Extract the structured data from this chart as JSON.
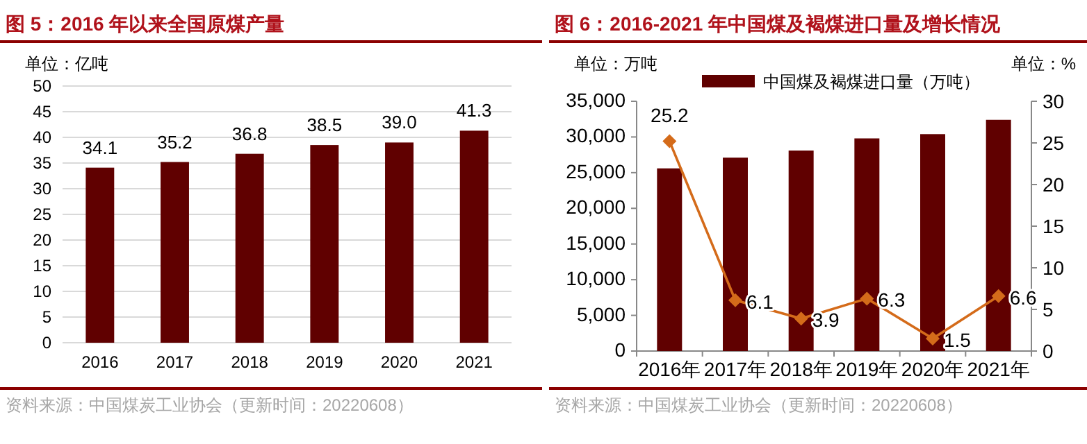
{
  "chart_data": [
    {
      "type": "bar",
      "title": "图 5：2016 年以来全国原煤产量",
      "ylabel": "单位：亿吨",
      "categories": [
        "2016",
        "2017",
        "2018",
        "2019",
        "2020",
        "2021"
      ],
      "series": [
        {
          "color": "#600000",
          "values": [
            34.1,
            35.2,
            36.8,
            38.5,
            39.0,
            41.3
          ],
          "value_labels": [
            "34.1",
            "35.2",
            "36.8",
            "38.5",
            "39.0",
            "41.3"
          ]
        }
      ],
      "ylim": [
        0,
        50
      ],
      "yticks": [
        0,
        5,
        10,
        15,
        20,
        25,
        30,
        35,
        40,
        45,
        50
      ],
      "grid": "y",
      "legend": false,
      "annotations": [
        "资料来源：中国煤炭工业协会（更新时间：20220608）"
      ]
    },
    {
      "type": "bar",
      "title": "图 6：2016-2021 年中国煤及褐煤进口量及增长情况",
      "ylabel": "单位：万吨",
      "y2label": "单位：%",
      "categories": [
        "2016年",
        "2017年",
        "2018年",
        "2019年",
        "2020年",
        "2021年"
      ],
      "series": [
        {
          "name": "中国煤及褐煤进口量（万吨）",
          "color": "#600000",
          "values": [
            25600,
            27100,
            28100,
            29800,
            30400,
            32400
          ]
        },
        {
          "type": "line",
          "axis": "y2",
          "color": "#d46b1a",
          "marker": "diamond",
          "values": [
            25.2,
            6.1,
            3.9,
            6.3,
            1.5,
            6.6
          ],
          "value_labels": [
            "25.2",
            "6.1",
            "3.9",
            "6.3",
            "1.5",
            "6.6"
          ]
        }
      ],
      "ylim": [
        0,
        35000
      ],
      "yticks": [
        {
          "value": 0,
          "label": "0"
        },
        {
          "value": 5000,
          "label": "5,000"
        },
        {
          "value": 10000,
          "label": "10,000"
        },
        {
          "value": 15000,
          "label": "15,000"
        },
        {
          "value": 20000,
          "label": "20,000"
        },
        {
          "value": 25000,
          "label": "25,000"
        },
        {
          "value": 30000,
          "label": "30,000"
        },
        {
          "value": 35000,
          "label": "35,000"
        }
      ],
      "y2lim": [
        0,
        30
      ],
      "y2ticks": [
        0,
        5,
        10,
        15,
        20,
        25,
        30
      ],
      "grid": false,
      "legend": "top",
      "annotations": [
        "资料来源：中国煤炭工业协会（更新时间：20220608）"
      ]
    }
  ]
}
